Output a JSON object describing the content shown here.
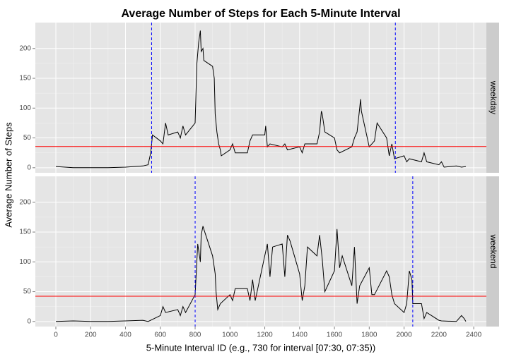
{
  "chart_data": {
    "type": "line",
    "title": "Average Number of Steps for Each 5-Minute Interval",
    "xlabel": "5-Minute Interval ID (e.g., 730 for interval [07:30, 07:35))",
    "ylabel": "Average Number of Steps",
    "xlim": [
      -117.75,
      2472.75
    ],
    "xticks": [
      0,
      200,
      400,
      600,
      800,
      1000,
      1200,
      1400,
      1600,
      1800,
      2000,
      2200,
      2400
    ],
    "ylim": [
      -8.5,
      243.5
    ],
    "yticks": [
      0,
      50,
      100,
      150,
      200
    ],
    "grid": true,
    "color": "#000000",
    "hline_color": "#ff0000",
    "vline_color": "#0000ff",
    "facets": [
      {
        "name": "weekday",
        "hline": 35.6,
        "vlines": [
          550,
          1950
        ],
        "x": [
          0,
          100,
          200,
          300,
          400,
          500,
          530,
          545,
          555,
          600,
          615,
          630,
          645,
          700,
          715,
          730,
          745,
          800,
          810,
          820,
          830,
          835,
          845,
          850,
          900,
          910,
          915,
          925,
          935,
          945,
          950,
          1000,
          1015,
          1030,
          1100,
          1115,
          1130,
          1200,
          1205,
          1215,
          1230,
          1300,
          1315,
          1330,
          1400,
          1415,
          1430,
          1500,
          1515,
          1525,
          1530,
          1545,
          1600,
          1615,
          1630,
          1700,
          1715,
          1730,
          1745,
          1750,
          1755,
          1800,
          1830,
          1845,
          1900,
          1915,
          1930,
          1945,
          2000,
          2015,
          2030,
          2100,
          2115,
          2130,
          2200,
          2215,
          2230,
          2300,
          2330,
          2355
        ],
        "values": [
          2,
          0,
          0,
          0,
          1,
          3,
          5,
          25,
          55,
          45,
          40,
          75,
          55,
          60,
          50,
          70,
          55,
          75,
          175,
          210,
          230,
          195,
          200,
          180,
          170,
          150,
          90,
          60,
          40,
          30,
          20,
          30,
          40,
          25,
          25,
          45,
          55,
          55,
          70,
          35,
          40,
          35,
          40,
          30,
          35,
          25,
          40,
          40,
          60,
          95,
          90,
          60,
          50,
          30,
          25,
          35,
          50,
          60,
          100,
          115,
          95,
          35,
          45,
          75,
          50,
          20,
          40,
          15,
          20,
          10,
          15,
          10,
          25,
          10,
          5,
          10,
          1,
          3,
          1,
          2
        ]
      },
      {
        "name": "weekend",
        "hline": 42.4,
        "vlines": [
          800,
          2050
        ],
        "x": [
          0,
          100,
          200,
          300,
          400,
          500,
          530,
          600,
          615,
          630,
          700,
          715,
          730,
          745,
          800,
          815,
          830,
          835,
          845,
          850,
          900,
          915,
          920,
          930,
          945,
          1000,
          1015,
          1030,
          1100,
          1115,
          1130,
          1145,
          1200,
          1215,
          1230,
          1245,
          1300,
          1315,
          1330,
          1345,
          1400,
          1415,
          1430,
          1445,
          1500,
          1515,
          1530,
          1545,
          1600,
          1615,
          1630,
          1645,
          1700,
          1715,
          1730,
          1745,
          1800,
          1815,
          1830,
          1900,
          1915,
          1930,
          1945,
          2000,
          2015,
          2030,
          2045,
          2050,
          2100,
          2115,
          2130,
          2200,
          2215,
          2300,
          2330,
          2345,
          2355
        ],
        "values": [
          0,
          1,
          0,
          0,
          1,
          2,
          0,
          10,
          25,
          15,
          20,
          10,
          25,
          15,
          45,
          130,
          100,
          145,
          160,
          155,
          110,
          80,
          50,
          20,
          30,
          45,
          35,
          55,
          55,
          35,
          70,
          35,
          110,
          130,
          75,
          125,
          130,
          75,
          145,
          135,
          80,
          35,
          60,
          125,
          110,
          145,
          105,
          50,
          85,
          155,
          90,
          110,
          60,
          125,
          30,
          60,
          90,
          45,
          45,
          85,
          75,
          45,
          30,
          15,
          30,
          85,
          70,
          30,
          30,
          5,
          15,
          2,
          1,
          0,
          10,
          5,
          0
        ]
      }
    ]
  }
}
